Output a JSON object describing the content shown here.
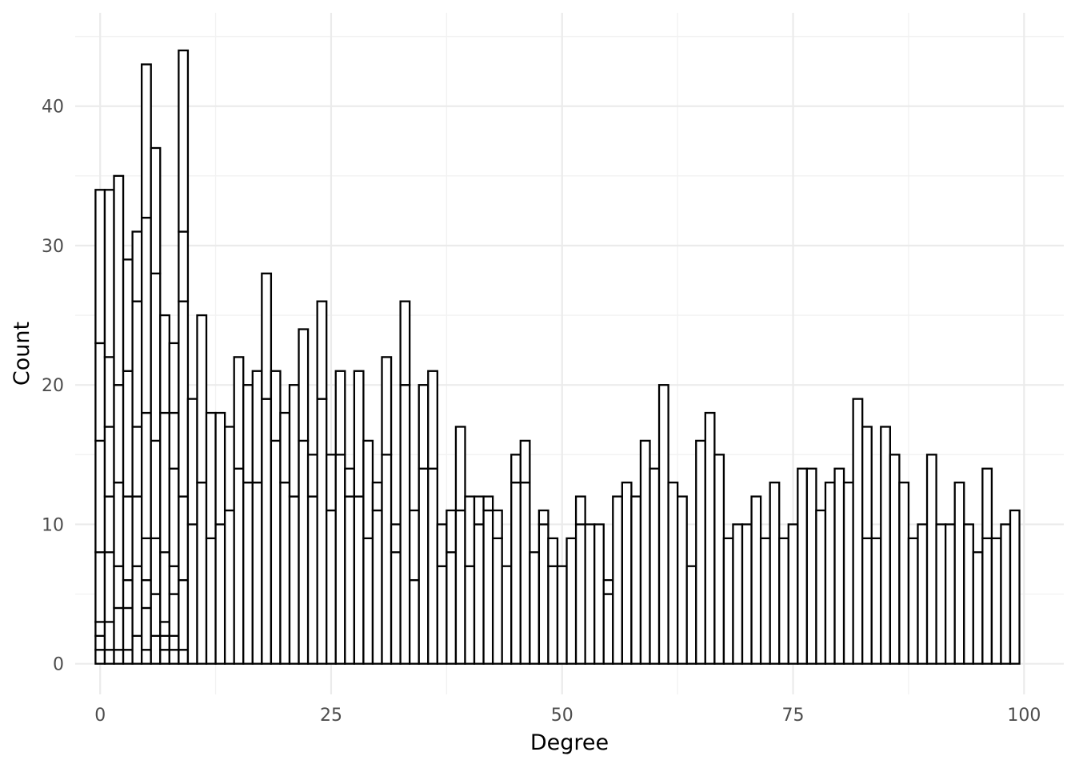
{
  "chart_data": {
    "type": "bar",
    "xlabel": "Degree",
    "ylabel": "Count",
    "x_ticks": [
      0,
      25,
      50,
      75,
      100
    ],
    "y_ticks": [
      0,
      10,
      20,
      30,
      40
    ],
    "x_tick_labels": [
      "0",
      "25",
      "50",
      "75",
      "100"
    ],
    "y_tick_labels": [
      "0",
      "10",
      "20",
      "30",
      "40"
    ],
    "xlim": [
      -2.7,
      104.3
    ],
    "ylim": [
      -2.2,
      46.7
    ],
    "bin_width": 1,
    "grid": true,
    "stacked": true,
    "x": [
      0,
      1,
      2,
      3,
      4,
      5,
      6,
      7,
      8,
      9,
      10,
      11,
      12,
      13,
      14,
      15,
      16,
      17,
      18,
      19,
      20,
      21,
      22,
      23,
      24,
      25,
      26,
      27,
      28,
      29,
      30,
      31,
      32,
      33,
      34,
      35,
      36,
      37,
      38,
      39,
      40,
      41,
      42,
      43,
      44,
      45,
      46,
      47,
      48,
      49,
      50,
      51,
      52,
      53,
      54,
      55,
      56,
      57,
      58,
      59,
      60,
      61,
      62,
      63,
      64,
      65,
      66,
      67,
      68,
      69,
      70,
      71,
      72,
      73,
      74,
      75,
      76,
      77,
      78,
      79,
      80,
      81,
      82,
      83,
      84,
      85,
      86,
      87,
      88,
      89,
      90,
      91,
      92,
      93,
      94,
      95,
      96,
      97,
      98,
      99
    ],
    "totals": [
      34,
      34,
      35,
      29,
      31,
      43,
      37,
      25,
      23,
      44,
      19,
      25,
      18,
      18,
      17,
      22,
      20,
      21,
      28,
      21,
      18,
      20,
      24,
      15,
      26,
      15,
      21,
      14,
      21,
      16,
      13,
      22,
      10,
      26,
      11,
      20,
      21,
      10,
      11,
      17,
      12,
      12,
      12,
      11,
      7,
      15,
      16,
      8,
      11,
      9,
      7,
      9,
      12,
      10,
      10,
      6,
      12,
      13,
      12,
      16,
      14,
      20,
      13,
      12,
      7,
      16,
      18,
      15,
      9,
      10,
      10,
      12,
      9,
      13,
      9,
      10,
      14,
      14,
      11,
      13,
      14,
      13,
      19,
      17,
      9,
      17,
      15,
      13,
      9,
      10,
      15,
      10,
      10,
      13,
      10,
      8,
      14,
      9,
      10,
      11
    ],
    "stack_boundaries": [
      [
        1,
        2,
        3,
        8,
        16,
        23
      ],
      [
        1,
        3,
        8,
        12,
        17,
        22
      ],
      [
        1,
        4,
        7,
        13,
        20
      ],
      [
        1,
        4,
        6,
        12,
        21
      ],
      [
        2,
        7,
        12,
        17,
        26
      ],
      [
        1,
        4,
        6,
        9,
        18,
        32
      ],
      [
        2,
        5,
        9,
        16,
        28
      ],
      [
        1,
        2,
        3,
        8,
        18
      ],
      [
        1,
        2,
        5,
        7,
        14,
        18
      ],
      [
        1,
        6,
        12,
        26,
        31
      ],
      [
        10
      ],
      [
        13
      ],
      [
        9
      ],
      [
        10
      ],
      [
        11
      ],
      [
        14
      ],
      [
        13
      ],
      [
        13
      ],
      [
        19
      ],
      [
        16
      ],
      [
        13
      ],
      [
        12
      ],
      [
        16
      ],
      [
        12
      ],
      [
        19
      ],
      [
        11
      ],
      [
        15
      ],
      [
        12
      ],
      [
        12
      ],
      [
        9
      ],
      [
        11
      ],
      [
        15
      ],
      [
        8
      ],
      [
        20
      ],
      [
        6
      ],
      [
        14
      ],
      [
        14
      ],
      [
        7
      ],
      [
        8
      ],
      [
        11
      ],
      [
        7
      ],
      [
        10
      ],
      [
        11
      ],
      [
        9
      ],
      [],
      [
        13
      ],
      [
        13
      ],
      [],
      [
        10
      ],
      [
        7
      ],
      [],
      [],
      [
        10
      ],
      [],
      [],
      [
        5
      ],
      [],
      [],
      [],
      [],
      [],
      [],
      [],
      [],
      [],
      [],
      [],
      [],
      [],
      [],
      [],
      [],
      [],
      [],
      [],
      [],
      [],
      [],
      [],
      [],
      [],
      [],
      [],
      [
        9
      ],
      [],
      [],
      [],
      [],
      [],
      [],
      [],
      [],
      [],
      [],
      [],
      [],
      [
        9
      ],
      [],
      [],
      []
    ]
  }
}
